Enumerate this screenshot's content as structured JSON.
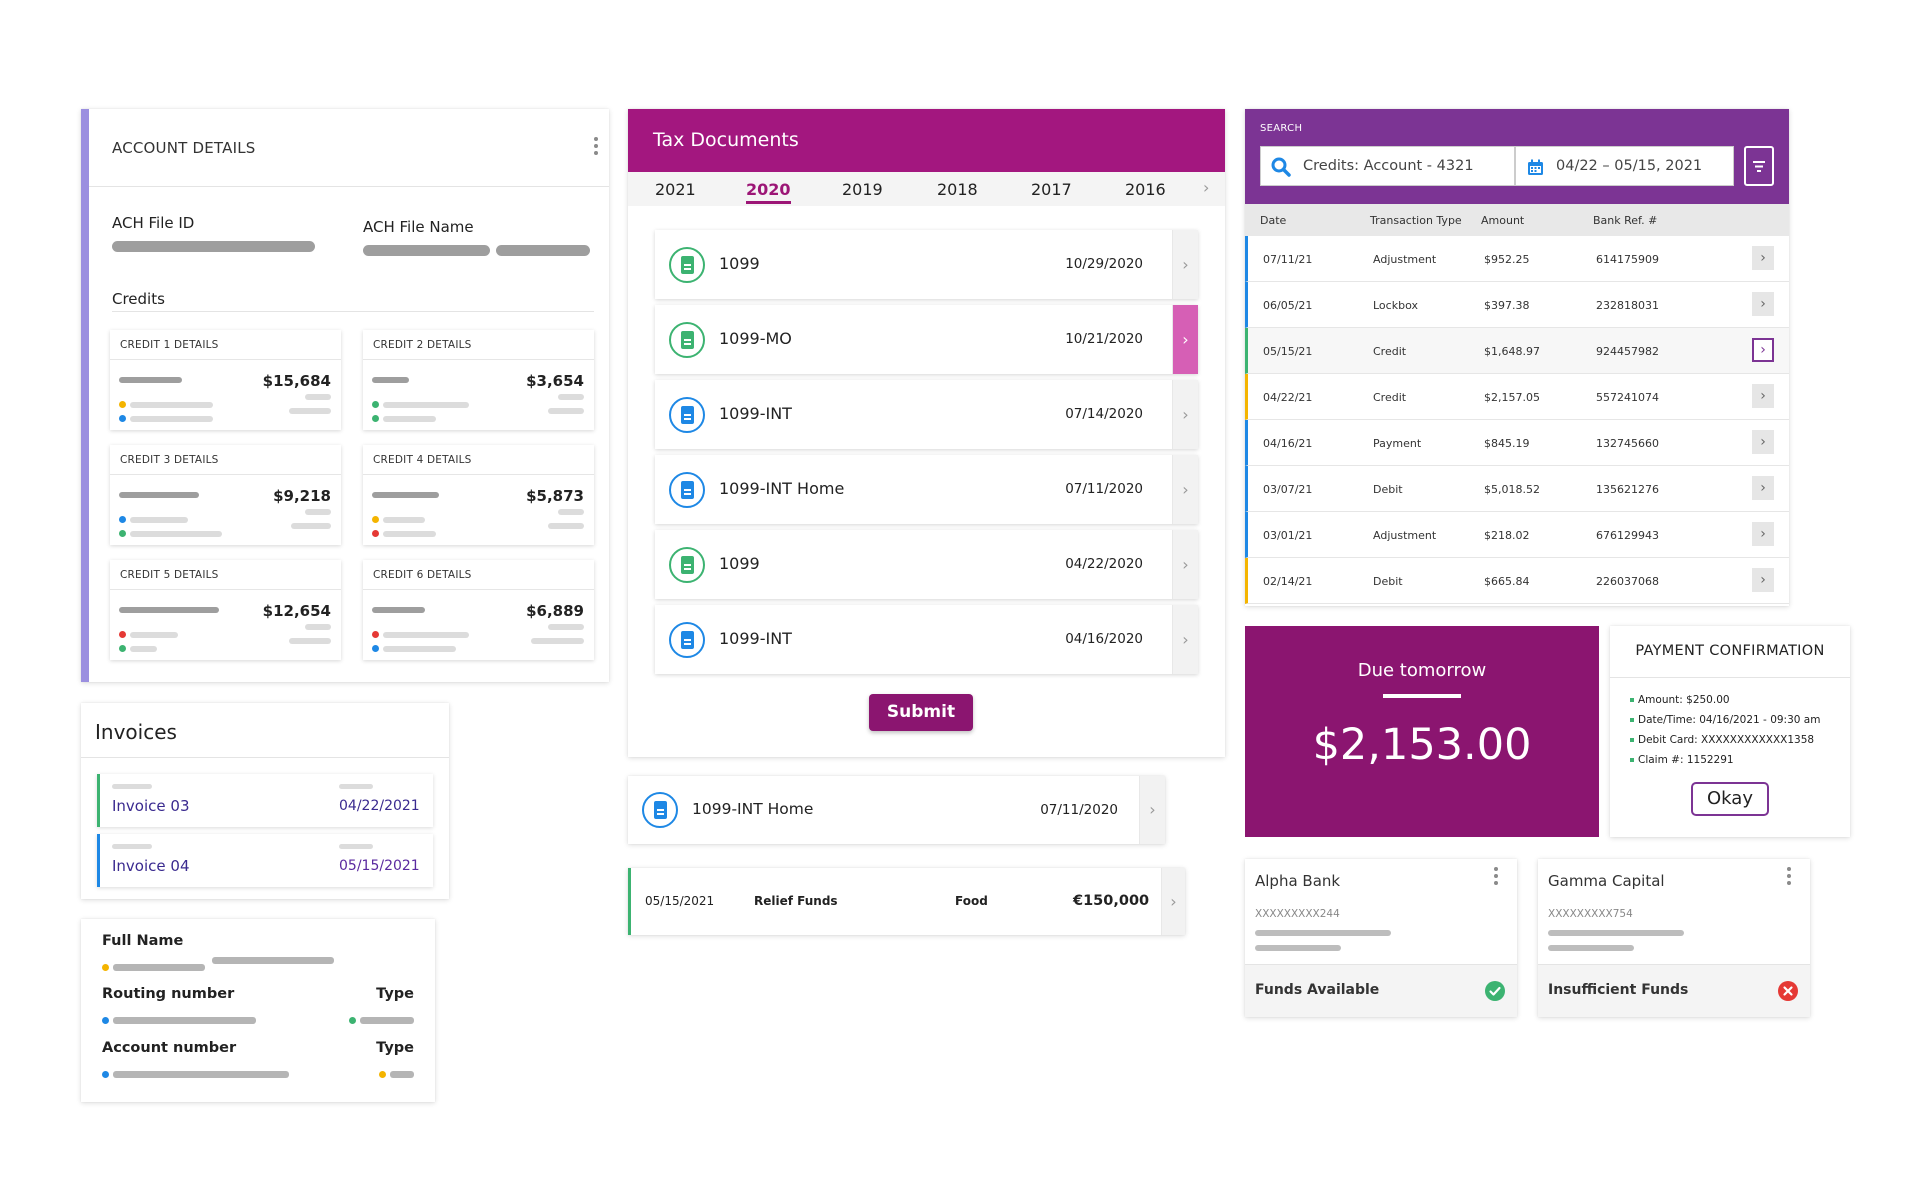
{
  "account_details": {
    "title": "ACCOUNT DETAILS",
    "ach_file_id_label": "ACH File ID",
    "ach_file_name_label": "ACH File Name",
    "credits_label": "Credits",
    "credits": [
      {
        "title": "CREDIT 1 DETAILS",
        "amount": "$15,684"
      },
      {
        "title": "CREDIT 2 DETAILS",
        "amount": "$3,654"
      },
      {
        "title": "CREDIT 3 DETAILS",
        "amount": "$9,218"
      },
      {
        "title": "CREDIT 4 DETAILS",
        "amount": "$5,873"
      },
      {
        "title": "CREDIT 5 DETAILS",
        "amount": "$12,654"
      },
      {
        "title": "CREDIT 6 DETAILS",
        "amount": "$6,889"
      }
    ]
  },
  "invoices": {
    "title": "Invoices",
    "items": [
      {
        "name": "Invoice 03",
        "date": "04/22/2021"
      },
      {
        "name": "Invoice 04",
        "date": "05/15/2021"
      }
    ]
  },
  "bank_form": {
    "full_name_label": "Full Name",
    "routing_label": "Routing number",
    "type_label": "Type",
    "account_label": "Account number",
    "type_label_2": "Type"
  },
  "tax_documents": {
    "title": "Tax Documents",
    "years": [
      "2021",
      "2020",
      "2019",
      "2018",
      "2017",
      "2016"
    ],
    "active_year": "2020",
    "docs": [
      {
        "name": "1099",
        "date": "10/29/2020",
        "icon": "green"
      },
      {
        "name": "1099-MO",
        "date": "10/21/2020",
        "icon": "green"
      },
      {
        "name": "1099-INT",
        "date": "07/14/2020",
        "icon": "blue"
      },
      {
        "name": "1099-INT Home",
        "date": "07/11/2020",
        "icon": "blue"
      },
      {
        "name": "1099",
        "date": "04/22/2020",
        "icon": "green"
      },
      {
        "name": "1099-INT",
        "date": "04/16/2020",
        "icon": "blue"
      }
    ],
    "submit_label": "Submit"
  },
  "single_doc": {
    "name": "1099-INT Home",
    "date": "07/11/2020"
  },
  "transaction_row": {
    "date": "05/15/2021",
    "description": "Relief Funds",
    "category": "Food",
    "amount": "€150,000"
  },
  "search": {
    "label": "SEARCH",
    "query": "Credits: Account - 4321",
    "date_range": "04/22 – 05/15, 2021",
    "columns": [
      "Date",
      "Transaction Type",
      "Amount",
      "Bank Ref. #"
    ],
    "rows": [
      {
        "date": "07/11/21",
        "type": "Adjustment",
        "amount": "$952.25",
        "ref": "614175909",
        "accent": "#1e88e5"
      },
      {
        "date": "06/05/21",
        "type": "Lockbox",
        "amount": "$397.38",
        "ref": "232818031",
        "accent": "#1e88e5"
      },
      {
        "date": "05/15/21",
        "type": "Credit",
        "amount": "$1,648.97",
        "ref": "924457982",
        "accent": "#3cb371"
      },
      {
        "date": "04/22/21",
        "type": "Credit",
        "amount": "$2,157.05",
        "ref": "557241074",
        "accent": "#f4b400"
      },
      {
        "date": "04/16/21",
        "type": "Payment",
        "amount": "$845.19",
        "ref": "132745660",
        "accent": "#1e88e5"
      },
      {
        "date": "03/07/21",
        "type": "Debit",
        "amount": "$5,018.52",
        "ref": "135621276",
        "accent": "#1e88e5"
      },
      {
        "date": "03/01/21",
        "type": "Adjustment",
        "amount": "$218.02",
        "ref": "676129943",
        "accent": "#1e88e5"
      },
      {
        "date": "02/14/21",
        "type": "Debit",
        "amount": "$665.84",
        "ref": "226037068",
        "accent": "#f4b400"
      }
    ]
  },
  "due": {
    "label": "Due tomorrow",
    "amount": "$2,153.00"
  },
  "payment_confirmation": {
    "title": "PAYMENT CONFIRMATION",
    "lines": [
      "Amount: $250.00",
      "Date/Time: 04/16/2021 - 09:30 am",
      "Debit Card: XXXXXXXXXXXX1358",
      "Claim #: 1152291"
    ],
    "okay_label": "Okay"
  },
  "banks": [
    {
      "name": "Alpha Bank",
      "account": "XXXXXXXXX244",
      "status": "Funds Available",
      "status_type": "ok"
    },
    {
      "name": "Gamma Capital",
      "account": "XXXXXXXXX754",
      "status": "Insufficient Funds",
      "status_type": "error"
    }
  ],
  "colors": {
    "accent_magenta": "#a3177f",
    "accent_purple": "#7c3494",
    "due_bg": "#8b1570",
    "card_border": "#9b8fe0"
  }
}
